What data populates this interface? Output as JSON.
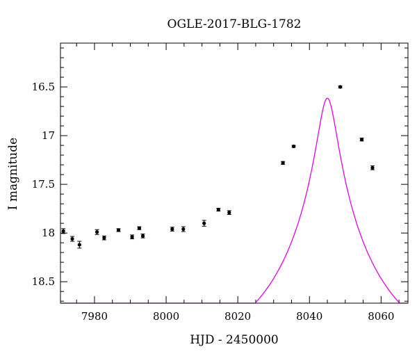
{
  "chart_data": {
    "type": "scatter",
    "title": "OGLE-2017-BLG-1782",
    "xlabel": "HJD - 2450000",
    "ylabel": "I magnitude",
    "xlim": [
      7970.5,
      8067.5
    ],
    "ylim": [
      18.72,
      16.05
    ],
    "y_inverted": true,
    "x_ticks": [
      7980,
      8000,
      8020,
      8040,
      8060
    ],
    "x_tick_labels": [
      "7980",
      "8000",
      "8020",
      "8040",
      "8060"
    ],
    "y_ticks": [
      16.5,
      17,
      17.5,
      18,
      18.5
    ],
    "y_tick_labels": [
      "16.5",
      "17",
      "17.5",
      "18",
      "18.5"
    ],
    "grid": false,
    "series": [
      {
        "kind": "points",
        "color": "#000000",
        "points": [
          {
            "x": 7971.3,
            "y": 17.98,
            "err": 0.025
          },
          {
            "x": 7973.8,
            "y": 18.06,
            "err": 0.025
          },
          {
            "x": 7975.8,
            "y": 18.12,
            "err": 0.035
          },
          {
            "x": 7980.7,
            "y": 17.99,
            "err": 0.025
          },
          {
            "x": 7982.7,
            "y": 18.05,
            "err": 0.02
          },
          {
            "x": 7986.7,
            "y": 17.97,
            "err": 0.015
          },
          {
            "x": 7990.5,
            "y": 18.04,
            "err": 0.02
          },
          {
            "x": 7992.5,
            "y": 17.95,
            "err": 0.015
          },
          {
            "x": 7993.5,
            "y": 18.03,
            "err": 0.02
          },
          {
            "x": 8001.7,
            "y": 17.96,
            "err": 0.02
          },
          {
            "x": 8004.8,
            "y": 17.96,
            "err": 0.025
          },
          {
            "x": 8010.6,
            "y": 17.9,
            "err": 0.03
          },
          {
            "x": 8014.6,
            "y": 17.76,
            "err": 0.015
          },
          {
            "x": 8017.6,
            "y": 17.79,
            "err": 0.02
          },
          {
            "x": 8032.6,
            "y": 17.28,
            "err": 0.015
          },
          {
            "x": 8035.6,
            "y": 17.11,
            "err": 0.01
          },
          {
            "x": 8048.6,
            "y": 16.5,
            "err": 0.01
          },
          {
            "x": 8054.6,
            "y": 17.04,
            "err": 0.015
          },
          {
            "x": 8057.6,
            "y": 17.33,
            "err": 0.02
          }
        ]
      },
      {
        "kind": "line",
        "color": "#e600e6",
        "model": {
          "type": "point-lens",
          "t0": 8045.0,
          "u0": 0.08,
          "tE": 32.0,
          "I_source": 19.36
        }
      }
    ]
  }
}
